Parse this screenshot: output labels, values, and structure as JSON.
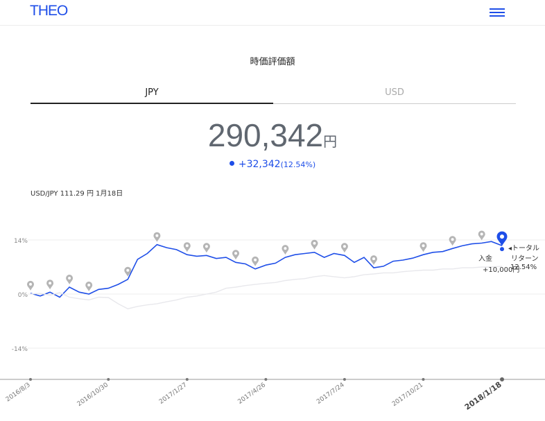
{
  "header": {
    "logo": "THEO",
    "menu_icon": "hamburger-menu-icon",
    "accent_color": "#1e4ee8"
  },
  "section_title": "時価評価額",
  "tabs": [
    {
      "label": "JPY",
      "active": true
    },
    {
      "label": "USD",
      "active": false
    }
  ],
  "valuation": {
    "amount": "290,342",
    "unit": "円",
    "change": "+32,342",
    "change_pct": "(12.54%)"
  },
  "fx_rate": "USD/JPY 111.29 円 1月18日",
  "annotations": {
    "deposit_label": "入金",
    "deposit_amount": "+10,000円",
    "total_return_label": "◂トータル",
    "total_return_label2": "リターン",
    "total_return_value": "12.54%"
  },
  "chart_data": {
    "type": "line",
    "yticks": [
      "14%",
      "0%",
      "-14%"
    ],
    "ylim": [
      -23,
      18
    ],
    "xlim": [
      "2016/8/3",
      "2018/1/18"
    ],
    "xticks": [
      "2016/8/3",
      "2016/10/30",
      "2017/1/27",
      "2017/4/26",
      "2017/7/24",
      "2017/10/21",
      "2018/1/18"
    ],
    "series": [
      {
        "color": "#1e4ee8",
        "x": [
          "2016/8/3",
          "2016/8/14",
          "2016/8/25",
          "2016/9/5",
          "2016/9/16",
          "2016/9/27",
          "2016/10/8",
          "2016/10/19",
          "2016/10/30",
          "2016/11/10",
          "2016/11/21",
          "2016/12/2",
          "2016/12/13",
          "2016/12/24",
          "2017/1/4",
          "2017/1/15",
          "2017/1/27",
          "2017/2/7",
          "2017/2/18",
          "2017/3/1",
          "2017/3/12",
          "2017/3/23",
          "2017/4/3",
          "2017/4/14",
          "2017/4/26",
          "2017/5/7",
          "2017/5/18",
          "2017/5/29",
          "2017/6/9",
          "2017/6/20",
          "2017/7/1",
          "2017/7/12",
          "2017/7/24",
          "2017/8/4",
          "2017/8/15",
          "2017/8/26",
          "2017/9/6",
          "2017/9/17",
          "2017/9/28",
          "2017/10/9",
          "2017/10/21",
          "2017/11/1",
          "2017/11/12",
          "2017/11/23",
          "2017/12/4",
          "2017/12/15",
          "2017/12/26",
          "2018/1/6",
          "2018/1/18"
        ],
        "y": [
          0.2,
          -0.5,
          0.5,
          -0.8,
          1.8,
          0.5,
          0.0,
          1.2,
          1.5,
          2.5,
          3.8,
          9.0,
          10.5,
          12.8,
          12.0,
          11.5,
          10.2,
          9.8,
          10.0,
          9.2,
          9.5,
          8.2,
          7.8,
          6.5,
          7.5,
          8.0,
          9.5,
          10.2,
          10.5,
          10.8,
          9.5,
          10.5,
          10.0,
          8.2,
          9.5,
          6.8,
          7.2,
          8.5,
          8.8,
          9.3,
          10.2,
          10.8,
          11.0,
          11.8,
          12.5,
          13.0,
          13.2,
          13.6,
          12.54
        ]
      },
      {
        "color": "#e8e8ec",
        "x": [
          "2016/8/3",
          "2016/8/14",
          "2016/8/25",
          "2016/9/5",
          "2016/9/16",
          "2016/9/27",
          "2016/10/8",
          "2016/10/19",
          "2016/10/30",
          "2016/11/10",
          "2016/11/21",
          "2016/12/2",
          "2016/12/13",
          "2016/12/24",
          "2017/1/4",
          "2017/1/15",
          "2017/1/27",
          "2017/2/7",
          "2017/2/18",
          "2017/3/1",
          "2017/3/12",
          "2017/3/23",
          "2017/4/3",
          "2017/4/14",
          "2017/4/26",
          "2017/5/7",
          "2017/5/18",
          "2017/5/29",
          "2017/6/9",
          "2017/6/20",
          "2017/7/1",
          "2017/7/12",
          "2017/7/24",
          "2017/8/4",
          "2017/8/15",
          "2017/8/26",
          "2017/9/6",
          "2017/9/17",
          "2017/9/28",
          "2017/10/9",
          "2017/10/21",
          "2017/11/1",
          "2017/11/12",
          "2017/11/23",
          "2017/12/4",
          "2017/12/15",
          "2017/12/26",
          "2018/1/6",
          "2018/1/18"
        ],
        "y": [
          0.0,
          0.2,
          -0.3,
          0.4,
          -0.8,
          -1.2,
          -1.5,
          -0.8,
          -0.9,
          -2.5,
          -3.8,
          -3.2,
          -2.8,
          -2.5,
          -2.0,
          -1.5,
          -0.8,
          -0.5,
          0.0,
          0.5,
          1.5,
          1.8,
          2.2,
          2.5,
          2.8,
          3.0,
          3.5,
          3.8,
          4.0,
          4.5,
          4.8,
          4.5,
          4.2,
          4.5,
          5.0,
          5.2,
          5.5,
          5.5,
          5.8,
          6.0,
          6.2,
          6.2,
          6.5,
          6.5,
          6.8,
          6.8,
          7.0,
          7.0,
          7.2
        ]
      }
    ],
    "deposit_markers": [
      "2016/8/3",
      "2016/8/25",
      "2016/9/16",
      "2016/10/8",
      "2016/11/21",
      "2016/12/24",
      "2017/1/27",
      "2017/2/18",
      "2017/3/23",
      "2017/4/14",
      "2017/5/18",
      "2017/6/20",
      "2017/7/24",
      "2017/8/26",
      "2017/10/21",
      "2017/11/23",
      "2017/12/26",
      "2018/1/18"
    ],
    "current_date": "2018/1/18"
  }
}
